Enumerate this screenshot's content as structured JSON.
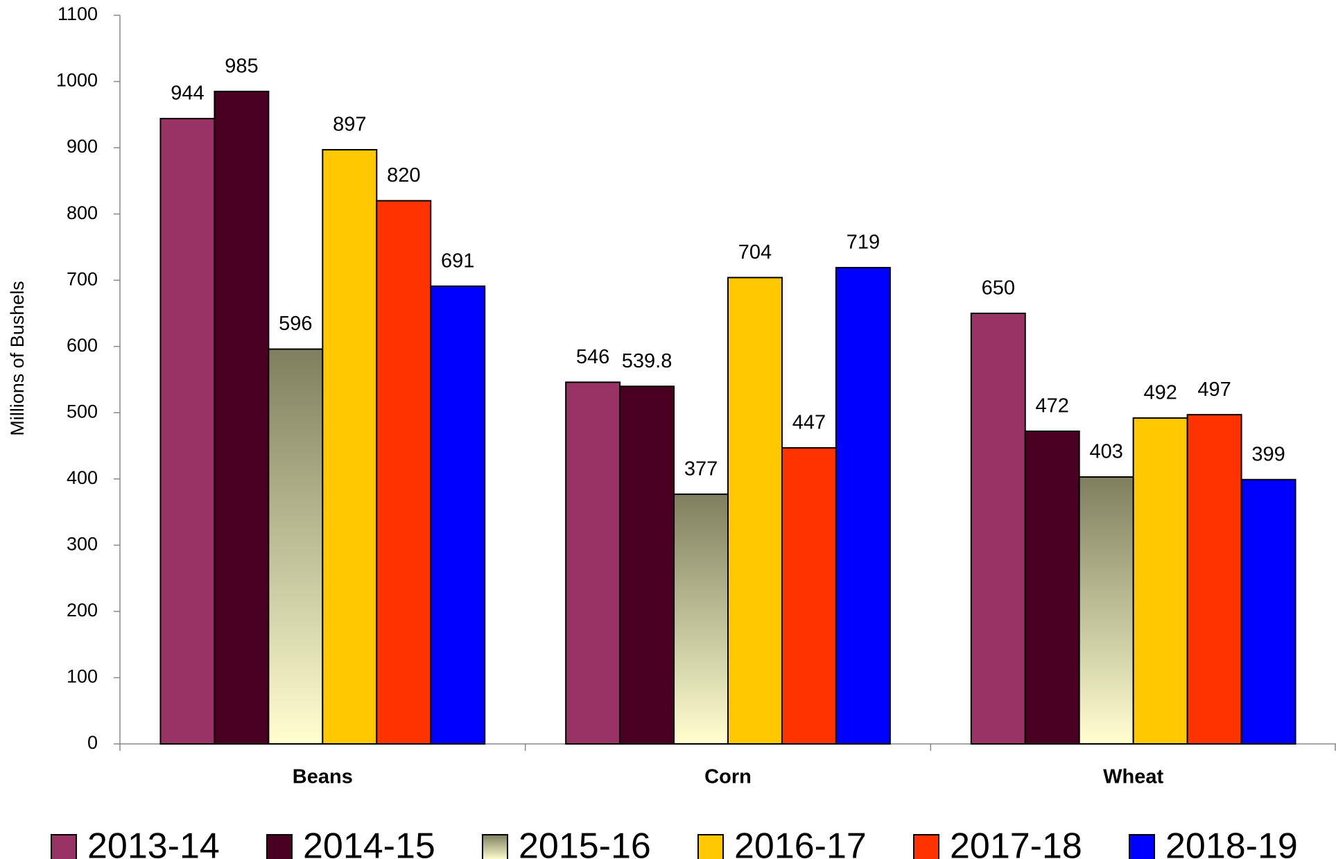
{
  "chart_data": {
    "type": "bar",
    "y_label": "Millions of Bushels",
    "categories": [
      "Beans",
      "Corn",
      "Wheat"
    ],
    "series": [
      {
        "name": "2013-14",
        "color": "#993366",
        "values": [
          944,
          546,
          650
        ]
      },
      {
        "name": "2014-15",
        "color": "#4a0020",
        "values": [
          985,
          539.8,
          472
        ]
      },
      {
        "name": "2015-16",
        "color": "#7f7f5f",
        "gradient_to": "#ffffd0",
        "values": [
          596,
          377,
          403
        ]
      },
      {
        "name": "2016-17",
        "color": "#ffc800",
        "values": [
          897,
          704,
          492
        ]
      },
      {
        "name": "2017-18",
        "color": "#ff3300",
        "values": [
          820,
          447,
          497
        ]
      },
      {
        "name": "2018-19",
        "color": "#0000ff",
        "values": [
          691,
          719,
          399
        ]
      }
    ],
    "ylim": [
      0,
      1100
    ],
    "yticks": [
      0,
      100,
      200,
      300,
      400,
      500,
      600,
      700,
      800,
      900,
      1000,
      1100
    ],
    "grid": false,
    "legend": "bottom"
  }
}
